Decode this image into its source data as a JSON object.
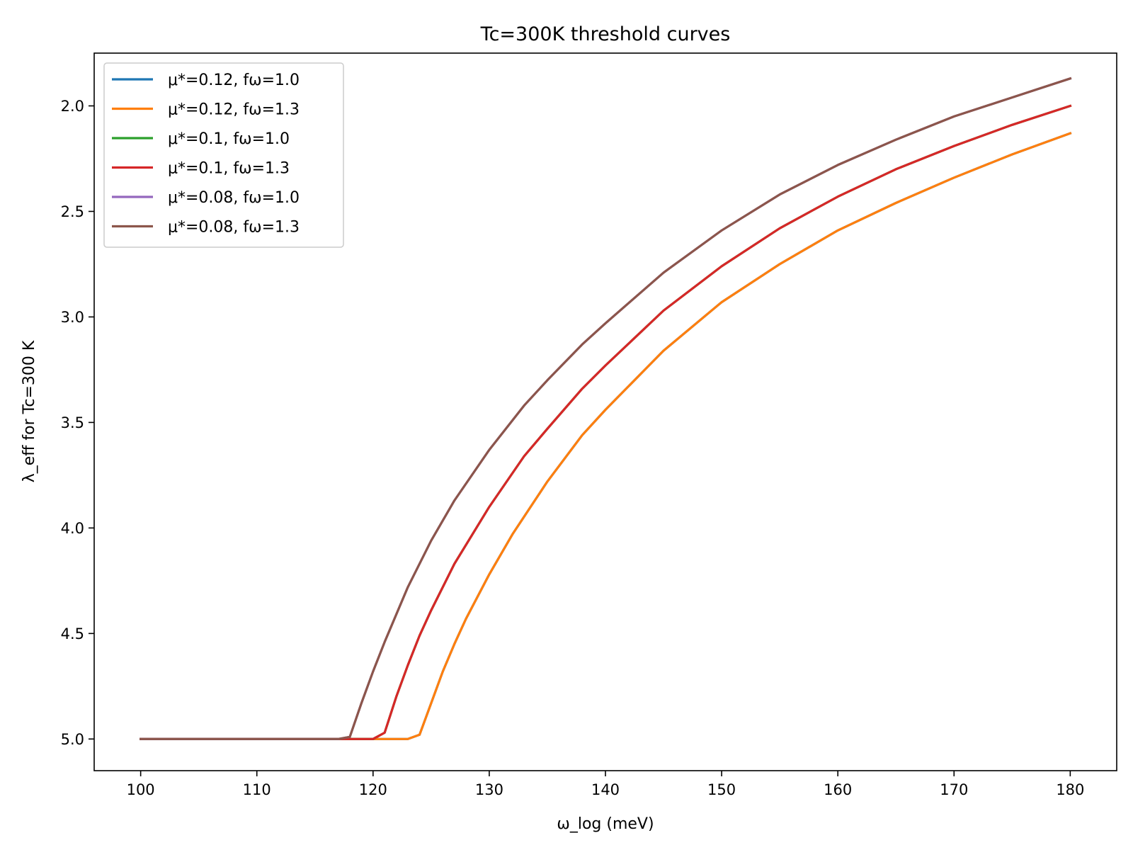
{
  "chart_data": {
    "type": "line",
    "title": "Tc=300K threshold curves",
    "xlabel": "ω_log (meV)",
    "ylabel": "λ_eff for Tc=300 K",
    "xlim": [
      96,
      184
    ],
    "ylim": [
      5.15,
      1.75
    ],
    "y_inverted": true,
    "xticks": [
      100,
      110,
      120,
      130,
      140,
      150,
      160,
      170,
      180
    ],
    "yticks": [
      2.0,
      2.5,
      3.0,
      3.5,
      4.0,
      4.5,
      5.0
    ],
    "xtick_labels": [
      "100",
      "110",
      "120",
      "130",
      "140",
      "150",
      "160",
      "170",
      "180"
    ],
    "ytick_labels": [
      "2.0",
      "2.5",
      "3.0",
      "3.5",
      "4.0",
      "4.5",
      "5.0"
    ],
    "grid": false,
    "legend_position": "top-left",
    "series": [
      {
        "name": "μ*=0.12, fω=1.0",
        "color": "#1f77b4",
        "x": [
          100,
          123,
          124,
          125,
          126,
          127,
          128,
          130,
          132,
          135,
          138,
          140,
          145,
          150,
          155,
          160,
          165,
          170,
          175,
          180
        ],
        "y": [
          5.0,
          5.0,
          4.98,
          4.83,
          4.68,
          4.55,
          4.43,
          4.22,
          4.03,
          3.78,
          3.56,
          3.44,
          3.16,
          2.93,
          2.75,
          2.59,
          2.46,
          2.34,
          2.23,
          2.13
        ]
      },
      {
        "name": "μ*=0.12, fω=1.3",
        "color": "#ff7f0e",
        "x": [
          100,
          123,
          124,
          125,
          126,
          127,
          128,
          130,
          132,
          135,
          138,
          140,
          145,
          150,
          155,
          160,
          165,
          170,
          175,
          180
        ],
        "y": [
          5.0,
          5.0,
          4.98,
          4.83,
          4.68,
          4.55,
          4.43,
          4.22,
          4.03,
          3.78,
          3.56,
          3.44,
          3.16,
          2.93,
          2.75,
          2.59,
          2.46,
          2.34,
          2.23,
          2.13
        ]
      },
      {
        "name": "μ*=0.1, fω=1.0",
        "color": "#2ca02c",
        "x": [
          100,
          120,
          121,
          122,
          123,
          124,
          125,
          127,
          130,
          133,
          135,
          138,
          140,
          145,
          150,
          155,
          160,
          165,
          170,
          175,
          180
        ],
        "y": [
          5.0,
          5.0,
          4.97,
          4.8,
          4.65,
          4.51,
          4.39,
          4.17,
          3.9,
          3.66,
          3.53,
          3.34,
          3.23,
          2.97,
          2.76,
          2.58,
          2.43,
          2.3,
          2.19,
          2.09,
          2.0
        ]
      },
      {
        "name": "μ*=0.1, fω=1.3",
        "color": "#d62728",
        "x": [
          100,
          120,
          121,
          122,
          123,
          124,
          125,
          127,
          130,
          133,
          135,
          138,
          140,
          145,
          150,
          155,
          160,
          165,
          170,
          175,
          180
        ],
        "y": [
          5.0,
          5.0,
          4.97,
          4.8,
          4.65,
          4.51,
          4.39,
          4.17,
          3.9,
          3.66,
          3.53,
          3.34,
          3.23,
          2.97,
          2.76,
          2.58,
          2.43,
          2.3,
          2.19,
          2.09,
          2.0
        ]
      },
      {
        "name": "μ*=0.08, fω=1.0",
        "color": "#9467bd",
        "x": [
          100,
          117,
          118,
          119,
          120,
          121,
          122,
          123,
          125,
          127,
          130,
          133,
          135,
          138,
          140,
          145,
          150,
          155,
          160,
          165,
          170,
          175,
          180
        ],
        "y": [
          5.0,
          5.0,
          4.99,
          4.83,
          4.68,
          4.54,
          4.41,
          4.28,
          4.06,
          3.87,
          3.63,
          3.42,
          3.3,
          3.13,
          3.03,
          2.79,
          2.59,
          2.42,
          2.28,
          2.16,
          2.05,
          1.96,
          1.87
        ]
      },
      {
        "name": "μ*=0.08, fω=1.3",
        "color": "#8c564b",
        "x": [
          100,
          117,
          118,
          119,
          120,
          121,
          122,
          123,
          125,
          127,
          130,
          133,
          135,
          138,
          140,
          145,
          150,
          155,
          160,
          165,
          170,
          175,
          180
        ],
        "y": [
          5.0,
          5.0,
          4.99,
          4.83,
          4.68,
          4.54,
          4.41,
          4.28,
          4.06,
          3.87,
          3.63,
          3.42,
          3.3,
          3.13,
          3.03,
          2.79,
          2.59,
          2.42,
          2.28,
          2.16,
          2.05,
          1.96,
          1.87
        ]
      }
    ]
  }
}
